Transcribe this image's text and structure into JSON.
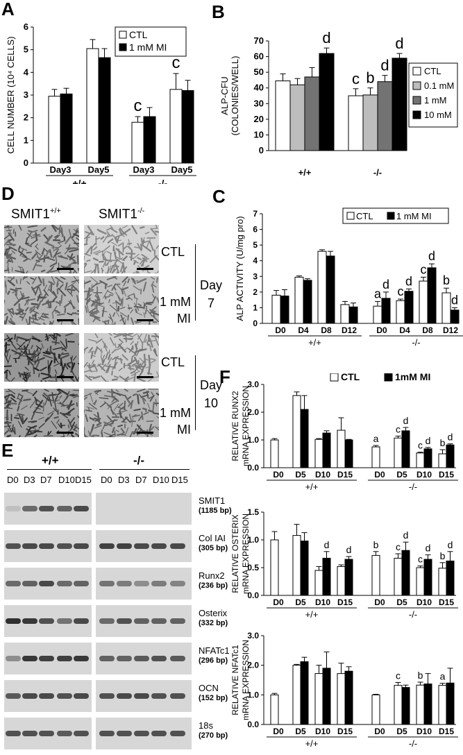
{
  "panel_letters": {
    "a": "A",
    "b": "B",
    "c": "C",
    "d": "D",
    "e": "E",
    "f": "F"
  },
  "chart_data": [
    {
      "id": "A",
      "type": "bar",
      "ylabel": "CELL NUMBER (10⁴ CELLS)",
      "ylim": [
        0,
        6
      ],
      "yticks": [
        "0",
        "1",
        "2",
        "3",
        "4",
        "5",
        "6"
      ],
      "categories": [
        "Day3",
        "Day5",
        "Day3",
        "Day5"
      ],
      "groups": [
        {
          "label": "+/+",
          "span": [
            0,
            1
          ]
        },
        {
          "label": "-/-",
          "span": [
            2,
            3
          ]
        }
      ],
      "series": [
        {
          "name": "CTL",
          "color": "#ffffff",
          "values": [
            2.95,
            5.05,
            1.8,
            3.25
          ],
          "errors": [
            0.3,
            0.4,
            0.25,
            0.7
          ]
        },
        {
          "name": "1 mM MI",
          "color": "#000000",
          "values": [
            3.05,
            4.65,
            2.05,
            3.2
          ],
          "errors": [
            0.25,
            0.4,
            0.4,
            0.45
          ]
        }
      ],
      "annotations": [
        {
          "index": 2,
          "series": 0,
          "text": "c"
        },
        {
          "index": 3,
          "series": 0,
          "text": "c"
        }
      ],
      "legend_position": "top-right"
    },
    {
      "id": "B",
      "type": "bar",
      "ylabel": "ALP-CFU\n(COLONIES/WELL)",
      "ylim": [
        0,
        70
      ],
      "yticks": [
        "0",
        "10",
        "20",
        "30",
        "40",
        "50",
        "60",
        "70"
      ],
      "categories": [
        "+/+",
        "-/-"
      ],
      "series": [
        {
          "name": "CTL",
          "color": "#ffffff",
          "values": [
            44.5,
            35
          ],
          "errors": [
            4.5,
            4.5
          ],
          "annotations": [
            "",
            "c"
          ]
        },
        {
          "name": "0.1 mM",
          "color": "#bdbdbd",
          "values": [
            42,
            35.5
          ],
          "errors": [
            4,
            4.5
          ],
          "annotations": [
            "",
            "b"
          ]
        },
        {
          "name": "1 mM",
          "color": "#737373",
          "values": [
            47,
            44
          ],
          "errors": [
            6,
            4
          ],
          "annotations": [
            "",
            "d"
          ]
        },
        {
          "name": "10 mM",
          "color": "#000000",
          "values": [
            62,
            59
          ],
          "errors": [
            3.5,
            3
          ],
          "annotations": [
            "d",
            "d"
          ]
        }
      ],
      "legend_position": "right"
    },
    {
      "id": "C",
      "type": "bar",
      "ylabel": "ALP ACTIVITY (U/mg pro)",
      "ylim": [
        0,
        7
      ],
      "yticks": [
        "0",
        "1",
        "2",
        "3",
        "4",
        "5",
        "6",
        "7"
      ],
      "categories": [
        "D0",
        "D4",
        "D8",
        "D12",
        "D0",
        "D4",
        "D8",
        "D12"
      ],
      "groups": [
        {
          "label": "+/+",
          "span": [
            0,
            3
          ]
        },
        {
          "label": "-/-",
          "span": [
            4,
            7
          ]
        }
      ],
      "series": [
        {
          "name": "CTL",
          "color": "#ffffff",
          "values": [
            1.8,
            2.95,
            4.6,
            1.2,
            1.1,
            1.45,
            2.7,
            1.95
          ],
          "errors": [
            0.3,
            0.08,
            0.1,
            0.2,
            0.3,
            0.1,
            0.25,
            0.3
          ],
          "annotations": [
            "",
            "",
            "",
            "",
            "a",
            "c",
            "c",
            "b"
          ]
        },
        {
          "name": "1 mM MI",
          "color": "#000000",
          "values": [
            1.75,
            2.75,
            4.3,
            1.05,
            1.6,
            2.05,
            3.55,
            0.85
          ],
          "errors": [
            0.4,
            0.1,
            0.3,
            0.25,
            0.4,
            0.15,
            0.25,
            0.15
          ],
          "annotations": [
            "",
            "",
            "",
            "",
            "d",
            "d",
            "d",
            "d"
          ]
        }
      ],
      "legend_position": "top-right"
    },
    {
      "id": "F1",
      "type": "bar",
      "ylabel": "RELATIVE RUNX2\nmRNA EXPRESSION",
      "ylim": [
        0,
        3
      ],
      "yticks": [
        "0.0",
        "1.0",
        "2.0",
        "3.0"
      ],
      "categories": [
        "D0",
        "D5",
        "D10",
        "D15",
        "D0",
        "D5",
        "D10",
        "D15"
      ],
      "groups": [
        {
          "label": "+/+",
          "span": [
            0,
            3
          ]
        },
        {
          "label": "-/-",
          "span": [
            4,
            7
          ]
        }
      ],
      "series": [
        {
          "name": "CTL",
          "color": "#ffffff",
          "values": [
            1.0,
            2.6,
            1.02,
            1.35,
            0.75,
            1.07,
            0.53,
            0.5
          ],
          "errors": [
            0.05,
            0.13,
            0.03,
            0.45,
            0.05,
            0.07,
            0.03,
            0.15
          ],
          "annotations": [
            "",
            "",
            "",
            "",
            "a",
            "c",
            "c",
            "b"
          ]
        },
        {
          "name": "1mM MI",
          "color": "#000000",
          "values": [
            null,
            2.1,
            1.25,
            1.0,
            null,
            1.33,
            0.68,
            0.82
          ],
          "errors": [
            0,
            0.5,
            0.08,
            0.02,
            0,
            0.12,
            0.05,
            0.04
          ],
          "annotations": [
            "",
            "",
            "",
            "",
            "",
            "d",
            "d",
            "d"
          ]
        }
      ],
      "legend_position": "top"
    },
    {
      "id": "F2",
      "type": "bar",
      "ylabel": "RELATIVE OSTERIX\nmRNA EXPRESSION",
      "ylim": [
        0,
        1.5
      ],
      "yticks": [
        "0.0",
        "0.5",
        "1.0",
        "1.5"
      ],
      "categories": [
        "D0",
        "D5",
        "D10",
        "D15",
        "D0",
        "D5",
        "D10",
        "D15"
      ],
      "groups": [
        {
          "label": "+/+",
          "span": [
            0,
            3
          ]
        },
        {
          "label": "-/-",
          "span": [
            4,
            7
          ]
        }
      ],
      "series": [
        {
          "name": "CTL",
          "color": "#ffffff",
          "values": [
            1.0,
            1.08,
            0.45,
            0.52,
            0.72,
            0.67,
            0.5,
            0.49
          ],
          "errors": [
            0.15,
            0.2,
            0.07,
            0.03,
            0.07,
            0.08,
            0.03,
            0.1
          ],
          "annotations": [
            "",
            "",
            "",
            "",
            "b",
            "c",
            "c",
            "b"
          ]
        },
        {
          "name": "1mM MI",
          "color": "#000000",
          "values": [
            null,
            0.98,
            0.67,
            0.65,
            null,
            0.81,
            0.65,
            0.62
          ],
          "errors": [
            0,
            0.15,
            0.12,
            0.05,
            0,
            0.15,
            0.08,
            0.17
          ],
          "annotations": [
            "",
            "",
            "d",
            "d",
            "",
            "d",
            "d",
            "d"
          ]
        }
      ]
    },
    {
      "id": "F3",
      "type": "bar",
      "ylabel": "RELATIVE NFATc1\nmRNA EXPRESSION",
      "ylim": [
        0,
        3
      ],
      "yticks": [
        "0.0",
        "1.0",
        "2.0",
        "3.0"
      ],
      "categories": [
        "D0",
        "D5",
        "D10",
        "D15",
        "D0",
        "D5",
        "D10",
        "D15"
      ],
      "groups": [
        {
          "label": "+/+",
          "span": [
            0,
            3
          ]
        },
        {
          "label": "-/-",
          "span": [
            4,
            7
          ]
        }
      ],
      "series": [
        {
          "name": "CTL",
          "color": "#ffffff",
          "values": [
            1.0,
            2.0,
            1.72,
            1.72,
            1.0,
            1.32,
            1.33,
            1.32
          ],
          "errors": [
            0.05,
            0.03,
            0.28,
            0.35,
            0.02,
            0.1,
            0.1,
            0.07
          ],
          "annotations": [
            "",
            "",
            "",
            "",
            "",
            "c",
            "b",
            "a"
          ]
        },
        {
          "name": "1mM MI",
          "color": "#000000",
          "values": [
            null,
            2.12,
            1.9,
            1.8,
            null,
            1.25,
            1.37,
            1.4
          ],
          "errors": [
            0,
            0.15,
            0.55,
            0.15,
            0,
            0.08,
            0.35,
            0.5
          ],
          "annotations": [
            "",
            "",
            "",
            "",
            "",
            "",
            "",
            ""
          ]
        }
      ]
    }
  ],
  "panel_d": {
    "columns": [
      "SMIT1+/+",
      "SMIT1-/-"
    ],
    "col_base": "SMIT1",
    "col_sup": [
      "+/+",
      "-/-"
    ],
    "row_labels": [
      "CTL",
      "1 mM\nMI",
      "CTL",
      "1 mM\nMI"
    ],
    "day_labels": [
      {
        "line1": "Day",
        "line2": "7"
      },
      {
        "line1": "Day",
        "line2": "10"
      }
    ]
  },
  "panel_e": {
    "groups": [
      "+/+",
      "-/-"
    ],
    "lanes": [
      "D0",
      "D3",
      "D7",
      "D10",
      "D15"
    ],
    "genes": [
      {
        "name": "SMIT1",
        "bp": "(1185 bp)",
        "wt": [
          0.05,
          0.55,
          0.7,
          0.6,
          0.75
        ],
        "ko": [
          0,
          0,
          0,
          0,
          0
        ]
      },
      {
        "name": "Col IAI",
        "bp": "(305 bp)",
        "wt": [
          0.7,
          0.75,
          0.75,
          0.7,
          0.75
        ],
        "ko": [
          0.8,
          0.8,
          0.75,
          0.75,
          0.75
        ]
      },
      {
        "name": "Runx2",
        "bp": "(236 bp)",
        "wt": [
          0.55,
          0.6,
          0.75,
          0.55,
          0.6
        ],
        "ko": [
          0.5,
          0.45,
          0.35,
          0.45,
          0.4
        ]
      },
      {
        "name": "Osterix",
        "bp": "(332 bp)",
        "wt": [
          0.9,
          0.85,
          0.7,
          0.5,
          0.75
        ],
        "ko": [
          0.55,
          0.7,
          0.6,
          0.6,
          0.6
        ]
      },
      {
        "name": "NFATc1",
        "bp": "(296 bp)",
        "wt": [
          0.35,
          0.85,
          0.8,
          0.8,
          0.85
        ],
        "ko": [
          0.6,
          0.6,
          0.65,
          0.7,
          0.65
        ]
      },
      {
        "name": "OCN",
        "bp": "(152 bp)",
        "wt": [
          0.65,
          0.75,
          0.75,
          0.7,
          0.75
        ],
        "ko": [
          0.7,
          0.75,
          0.75,
          0.7,
          0.7
        ]
      },
      {
        "name": "18s",
        "bp": "(270 bp)",
        "wt": [
          0.7,
          0.7,
          0.7,
          0.65,
          0.7
        ],
        "ko": [
          0.7,
          0.7,
          0.7,
          0.7,
          0.7
        ]
      }
    ]
  }
}
